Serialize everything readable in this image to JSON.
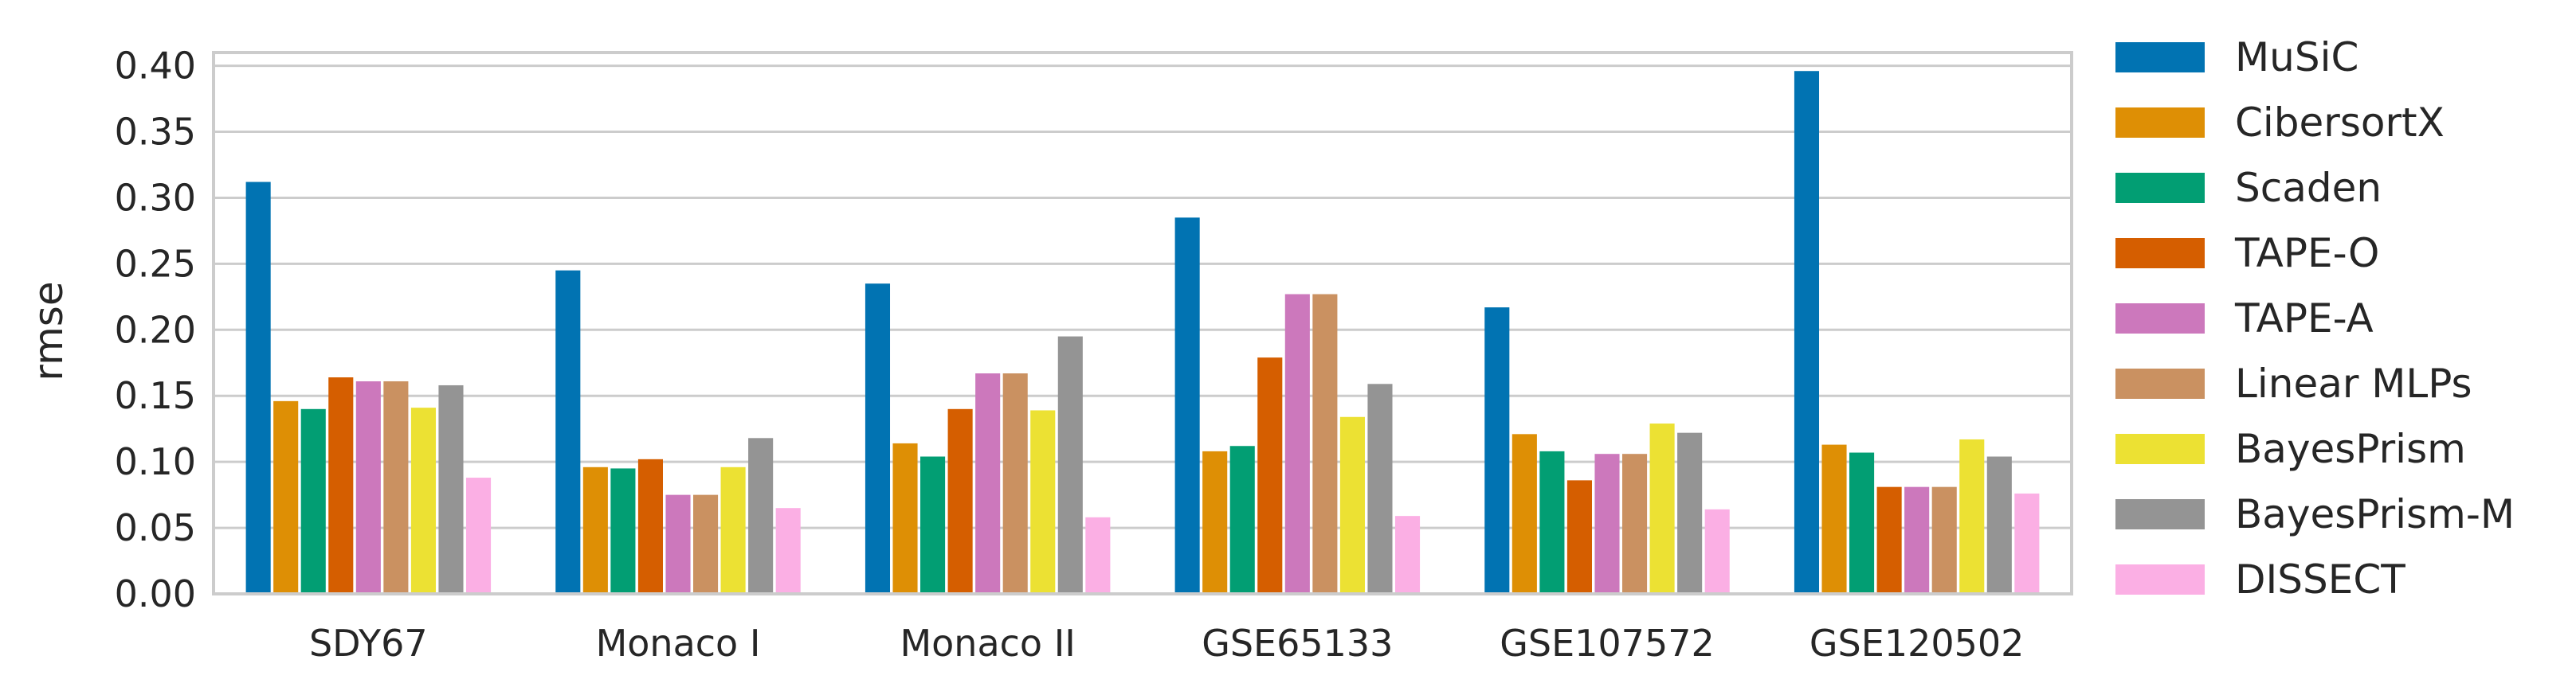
{
  "chart_data": {
    "type": "bar",
    "categories": [
      "SDY67",
      "Monaco I",
      "Monaco II",
      "GSE65133",
      "GSE107572",
      "GSE120502"
    ],
    "ylabel": "rmse",
    "xlabel": "",
    "ylim": [
      0,
      0.41
    ],
    "yticks": [
      "0.00",
      "0.05",
      "0.10",
      "0.15",
      "0.20",
      "0.25",
      "0.30",
      "0.35",
      "0.40"
    ],
    "yticks_values": [
      0,
      0.05,
      0.1,
      0.15,
      0.2,
      0.25,
      0.3,
      0.35,
      0.4
    ],
    "grid": true,
    "legend_position": "outside-right",
    "series": [
      {
        "name": "MuSiC",
        "color": "#0173b2",
        "values": [
          0.312,
          0.245,
          0.235,
          0.285,
          0.217,
          0.396
        ]
      },
      {
        "name": "CibersortX",
        "color": "#de8f05",
        "values": [
          0.146,
          0.096,
          0.114,
          0.108,
          0.121,
          0.113
        ]
      },
      {
        "name": "Scaden",
        "color": "#029e73",
        "values": [
          0.14,
          0.095,
          0.104,
          0.112,
          0.108,
          0.107
        ]
      },
      {
        "name": "TAPE-O",
        "color": "#d55e00",
        "values": [
          0.164,
          0.102,
          0.14,
          0.179,
          0.086,
          0.081
        ]
      },
      {
        "name": "TAPE-A",
        "color": "#cc78bc",
        "values": [
          0.161,
          0.075,
          0.167,
          0.227,
          0.106,
          0.081
        ]
      },
      {
        "name": "Linear MLPs",
        "color": "#ca9161",
        "values": [
          0.161,
          0.075,
          0.167,
          0.227,
          0.106,
          0.081
        ]
      },
      {
        "name": "BayesPrism",
        "color": "#ece133",
        "values": [
          0.141,
          0.096,
          0.139,
          0.134,
          0.129,
          0.117
        ]
      },
      {
        "name": "BayesPrism-M",
        "color": "#949494",
        "values": [
          0.158,
          0.118,
          0.195,
          0.159,
          0.122,
          0.104
        ]
      },
      {
        "name": "DISSECT",
        "color": "#fbafe4",
        "values": [
          0.088,
          0.065,
          0.058,
          0.059,
          0.064,
          0.076
        ]
      }
    ]
  }
}
